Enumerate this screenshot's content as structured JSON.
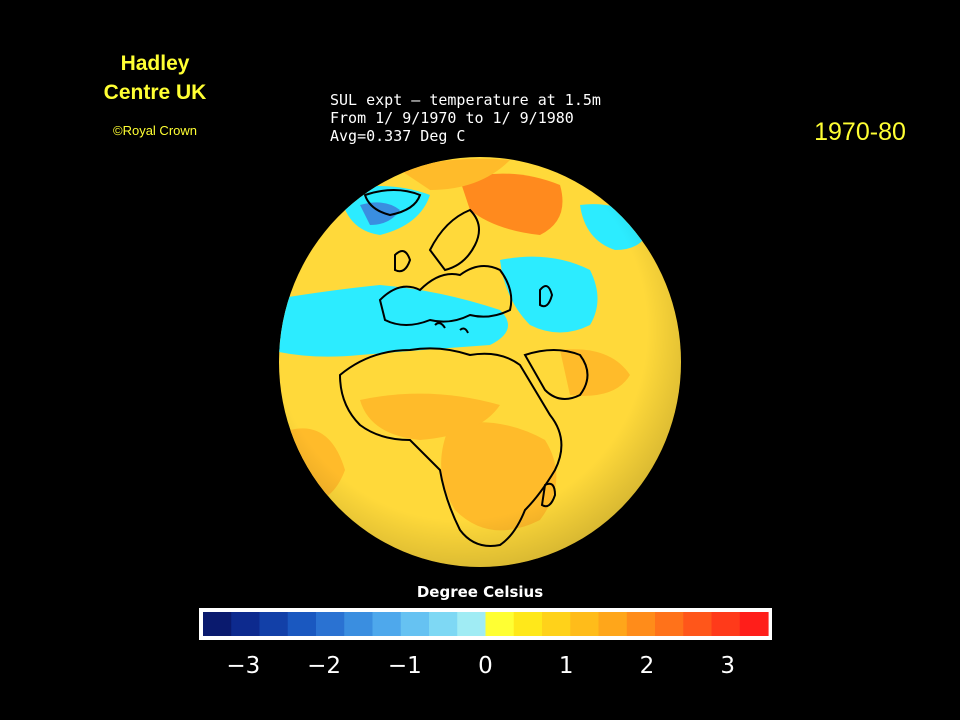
{
  "credit": {
    "line1": "Hadley",
    "line2": "Centre UK",
    "copyright": "©Royal Crown"
  },
  "period_label": "1970-80",
  "map": {
    "title_line1": "SUL expt — temperature at 1.5m",
    "title_line2": "From 1/ 9/1970 to 1/ 9/1980",
    "title_line3": "Avg=0.337 Deg C"
  },
  "legend": {
    "title": "Degree Celsius",
    "min": -3.5,
    "max": 3.5,
    "colors": [
      "#0a1a6e",
      "#0d2a8e",
      "#1240a8",
      "#1a58c0",
      "#2a72d2",
      "#3a8ee0",
      "#4ea8ec",
      "#66c2f2",
      "#7ed8f4",
      "#a0ecf4",
      "#ffff33",
      "#ffe81a",
      "#ffd21a",
      "#ffbc1a",
      "#ffa61a",
      "#ff8c1a",
      "#ff721a",
      "#ff561a",
      "#ff3a1a",
      "#ff1e1a"
    ],
    "ticks": [
      {
        "value": -3,
        "label": "−3"
      },
      {
        "value": -2,
        "label": "−2"
      },
      {
        "value": -1,
        "label": "−1"
      },
      {
        "value": 0,
        "label": "0"
      },
      {
        "value": 1,
        "label": "1"
      },
      {
        "value": 2,
        "label": "2"
      },
      {
        "value": 3,
        "label": "3"
      }
    ]
  },
  "globe_colors": {
    "base": "#ffd93a",
    "warm": "#ffbb2a",
    "hot": "#ff8a1e",
    "cool": "#2cecff",
    "cold": "#3a8ee0",
    "coastline": "#000000"
  }
}
